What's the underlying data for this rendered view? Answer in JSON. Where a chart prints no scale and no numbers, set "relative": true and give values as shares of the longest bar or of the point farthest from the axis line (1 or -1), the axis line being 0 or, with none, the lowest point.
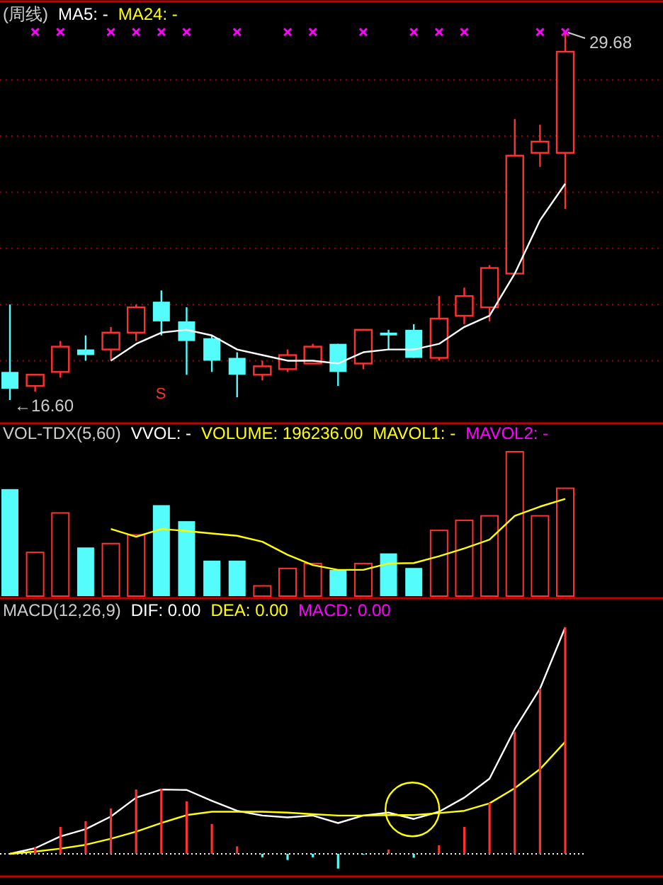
{
  "chart_data": [
    {
      "type": "candlestick",
      "title": "(周线)",
      "annotations": [
        "MA5: -",
        "MA24: -",
        "29.68",
        "←16.60",
        "S"
      ],
      "categories": [
        null,
        null,
        null,
        null,
        null,
        null,
        null,
        null,
        null,
        null,
        null,
        null,
        null,
        null,
        null,
        null,
        null,
        null,
        null,
        null,
        null,
        null,
        null
      ],
      "ohlc": [
        [
          17.6,
          20.0,
          16.6,
          17.0
        ],
        [
          17.1,
          17.5,
          16.9,
          17.5
        ],
        [
          17.6,
          18.7,
          17.4,
          18.5
        ],
        [
          18.4,
          18.9,
          18.0,
          18.2
        ],
        [
          18.4,
          19.2,
          18.0,
          19.0
        ],
        [
          19.0,
          20.0,
          18.7,
          19.9
        ],
        [
          20.1,
          20.5,
          18.9,
          19.4
        ],
        [
          19.4,
          19.9,
          17.5,
          18.7
        ],
        [
          18.8,
          18.9,
          17.6,
          18.0
        ],
        [
          18.1,
          18.3,
          16.7,
          17.5
        ],
        [
          17.5,
          18.0,
          17.3,
          17.8
        ],
        [
          17.7,
          18.4,
          17.6,
          18.2
        ],
        [
          17.9,
          18.6,
          17.9,
          18.5
        ],
        [
          18.6,
          18.6,
          17.1,
          17.6
        ],
        [
          17.9,
          19.1,
          17.7,
          19.1
        ],
        [
          19.0,
          19.1,
          18.4,
          18.9
        ],
        [
          19.1,
          19.3,
          18.1,
          18.1
        ],
        [
          18.1,
          20.3,
          18.0,
          19.5
        ],
        [
          19.6,
          20.6,
          19.3,
          20.3
        ],
        [
          19.9,
          21.4,
          19.4,
          21.3
        ],
        [
          21.1,
          26.6,
          21.1,
          25.3
        ],
        [
          25.4,
          26.4,
          24.9,
          25.8
        ],
        [
          25.4,
          29.68,
          23.4,
          29.0
        ]
      ],
      "colors": [
        "#54fcfc",
        "#ff3232",
        "#ff3232",
        "#54fcfc",
        "#ff3232",
        "#ff3232",
        "#54fcfc",
        "#54fcfc",
        "#54fcfc",
        "#54fcfc",
        "#ff3232",
        "#ff3232",
        "#ff3232",
        "#54fcfc",
        "#ff3232",
        "#54fcfc",
        "#54fcfc",
        "#ff3232",
        "#ff3232",
        "#ff3232",
        "#ff3232",
        "#ff3232",
        "#ff3232"
      ],
      "series": [
        {
          "type": "line",
          "color": "#ffffff",
          "values": [
            null,
            null,
            null,
            null,
            18.0,
            18.6,
            19.0,
            19.1,
            18.9,
            18.4,
            18.2,
            18.0,
            18.0,
            17.9,
            18.3,
            18.4,
            18.4,
            18.6,
            19.2,
            19.6,
            21.1,
            23.0,
            24.3
          ]
        },
        {
          "type": "scatter",
          "marker": "cross",
          "color": "#ff00ff",
          "values": [
            null,
            29.7,
            29.7,
            null,
            29.7,
            29.7,
            29.7,
            29.7,
            null,
            29.7,
            null,
            29.7,
            29.7,
            null,
            29.7,
            null,
            29.7,
            29.7,
            29.7,
            null,
            null,
            29.7,
            29.7
          ]
        }
      ],
      "yticks": [
        {
          "value": 18,
          "label": null
        },
        {
          "value": 20,
          "label": null
        },
        {
          "value": 22,
          "label": null
        },
        {
          "value": 24,
          "label": null
        },
        {
          "value": 26,
          "label": null
        },
        {
          "value": 28,
          "label": null
        }
      ],
      "grid": "y"
    },
    {
      "type": "bar",
      "title": "VOL-TDX(5,60)",
      "annotations": [
        "VVOL: -",
        "VOLUME: 196236.00",
        "MAVOL1: -",
        "MAVOL2: -"
      ],
      "relative": true,
      "categories": [
        null,
        null,
        null,
        null,
        null,
        null,
        null,
        null,
        null,
        null,
        null,
        null,
        null,
        null,
        null,
        null,
        null,
        null,
        null,
        null,
        null,
        null,
        null
      ],
      "series": [
        {
          "type": "bar",
          "colors": [
            "#54fcfc",
            "#ff3232",
            "#ff3232",
            "#54fcfc",
            "#ff3232",
            "#ff3232",
            "#54fcfc",
            "#54fcfc",
            "#54fcfc",
            "#54fcfc",
            "#ff3232",
            "#ff3232",
            "#ff3232",
            "#54fcfc",
            "#ff3232",
            "#54fcfc",
            "#54fcfc",
            "#ff3232",
            "#ff3232",
            "#ff3232",
            "#ff3232",
            "#ff3232",
            "#ff3232"
          ],
          "values": [
            0.741,
            0.303,
            0.576,
            0.337,
            0.364,
            0.424,
            0.63,
            0.519,
            0.246,
            0.246,
            0.071,
            0.192,
            0.226,
            0.182,
            0.226,
            0.296,
            0.195,
            0.455,
            0.525,
            0.556,
            1,
            0.556,
            0.747
          ]
        },
        {
          "type": "line",
          "color": "#ffff00",
          "values": [
            null,
            null,
            null,
            null,
            0.465,
            0.411,
            0.465,
            0.451,
            0.434,
            0.418,
            0.377,
            0.286,
            0.215,
            0.182,
            0.182,
            0.226,
            0.229,
            0.276,
            0.33,
            0.391,
            0.556,
            0.62,
            0.673
          ]
        }
      ]
    },
    {
      "type": "line",
      "title": "MACD(12,26,9)",
      "annotations": [
        "DIF: 0.00",
        "DEA: 0.00",
        "MACD: 0.00"
      ],
      "relative": true,
      "categories": [
        null,
        null,
        null,
        null,
        null,
        null,
        null,
        null,
        null,
        null,
        null,
        null,
        null,
        null,
        null,
        null,
        null,
        null,
        null,
        null,
        null,
        null,
        null
      ],
      "series": [
        {
          "type": "line",
          "color": "#ffffff",
          "values": [
            0,
            0.025,
            0.077,
            0.109,
            0.165,
            0.248,
            0.284,
            0.282,
            0.234,
            0.19,
            0.169,
            0.161,
            0.169,
            0.136,
            0.169,
            0.182,
            0.154,
            0.186,
            0.248,
            0.332,
            0.551,
            0.729,
            1
          ]
        },
        {
          "type": "line",
          "color": "#ffff00",
          "values": [
            0,
            0.01,
            0.023,
            0.04,
            0.067,
            0.098,
            0.136,
            0.171,
            0.186,
            0.186,
            0.186,
            0.182,
            0.175,
            0.169,
            0.169,
            0.171,
            0.171,
            0.18,
            0.19,
            0.223,
            0.29,
            0.374,
            0.495
          ]
        },
        {
          "type": "bar",
          "colors": [
            "#ff3232",
            "#ff3232",
            "#ff3232",
            "#ff3232",
            "#ff3232",
            "#ff3232",
            "#ff3232",
            "#ff3232",
            "#ff3232",
            "#ff3232",
            "#54fcfc",
            "#54fcfc",
            "#54fcfc",
            "#54fcfc",
            "#54fcfc",
            "#ff3232",
            "#54fcfc",
            "#ff3232",
            "#ff3232",
            "#ff3232",
            "#ff3232",
            "#ff3232",
            "#ff3232"
          ],
          "values": [
            0,
            0.029,
            0.119,
            0.144,
            0.2,
            0.284,
            0.288,
            0.232,
            0.132,
            0.033,
            -0.015,
            -0.027,
            -0.015,
            -0.065,
            -0.004,
            0.019,
            -0.017,
            0.038,
            0.119,
            0.225,
            0.539,
            0.729,
            1
          ]
        }
      ],
      "ref_lines": [
        {
          "axis": "y",
          "value": 0,
          "color": "#ffffff",
          "line_style": "dotted"
        }
      ]
    }
  ]
}
